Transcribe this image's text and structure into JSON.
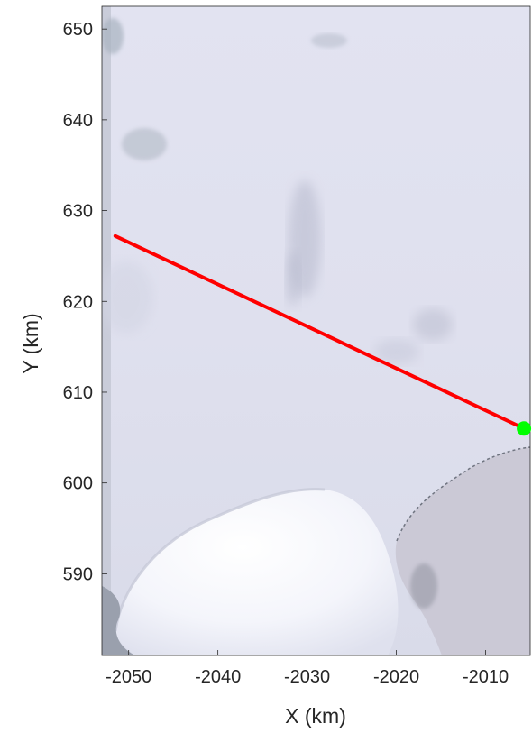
{
  "chart_data": {
    "type": "map",
    "basemap": "satellite-imagery",
    "xlabel": "X (km)",
    "ylabel": "Y (km)",
    "xlim": [
      -2053,
      -2005
    ],
    "ylim": [
      581,
      652.5
    ],
    "x_ticks": [
      -2050,
      -2040,
      -2030,
      -2020,
      -2010
    ],
    "y_ticks": [
      590,
      600,
      610,
      620,
      630,
      640,
      650
    ],
    "x_tick_labels": [
      "-2050",
      "-2040",
      "-2030",
      "-2020",
      "-2010"
    ],
    "y_tick_labels": [
      "590",
      "600",
      "610",
      "620",
      "630",
      "640",
      "650"
    ],
    "track": {
      "color": "#ff0000",
      "points": [
        [
          -2051.5,
          627.2
        ],
        [
          -2005.7,
          606.0
        ]
      ]
    },
    "marker": {
      "color": "#00ff00",
      "x": -2005.7,
      "y": 606.0
    },
    "grid": false
  }
}
